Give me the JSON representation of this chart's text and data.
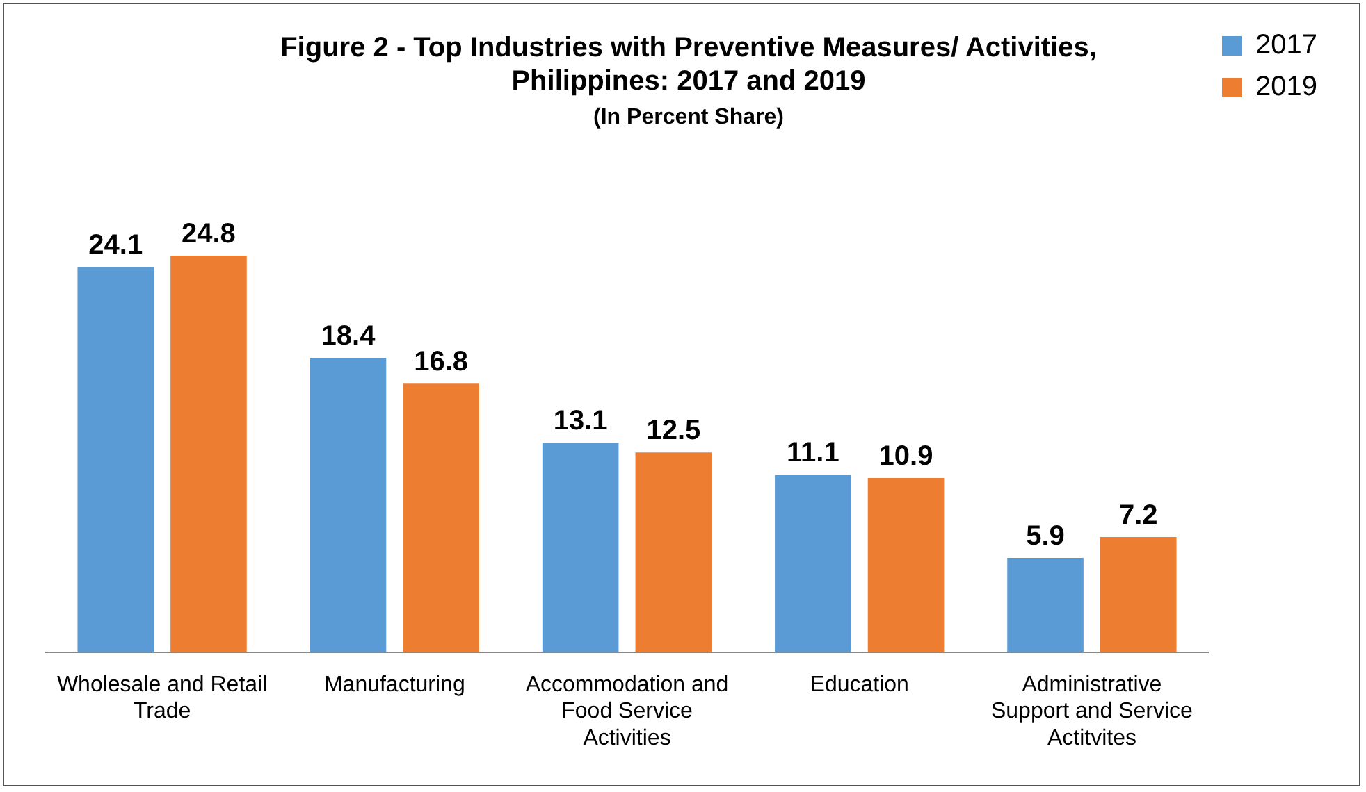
{
  "chart_data": {
    "type": "bar",
    "title": "Figure 2 - Top Industries with Preventive Measures/ Activities, Philippines: 2017 and 2019",
    "subtitle": "(In Percent Share)",
    "categories": [
      "Wholesale and Retail Trade",
      "Manufacturing",
      "Accommodation and Food Service Activities",
      "Education",
      "Administrative Support and Service Actitvites"
    ],
    "series": [
      {
        "name": "2017",
        "color": "#5b9bd5",
        "values": [
          24.1,
          18.4,
          13.1,
          11.1,
          5.9
        ]
      },
      {
        "name": "2019",
        "color": "#ed7d31",
        "values": [
          24.8,
          16.8,
          12.5,
          10.9,
          7.2
        ]
      }
    ],
    "data_labels": true,
    "grid": false,
    "legend": "top right"
  }
}
